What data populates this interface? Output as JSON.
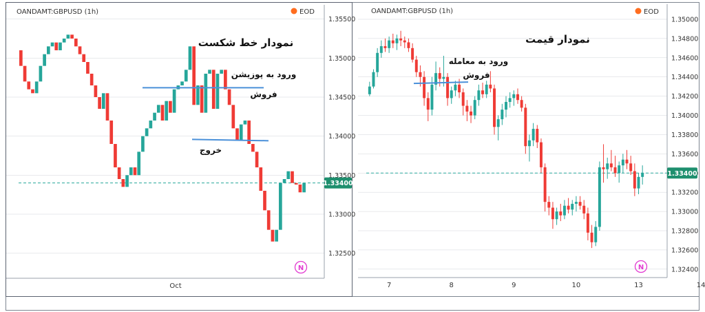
{
  "colors": {
    "up": "#26a69a",
    "down": "#ef3b35",
    "line": "#4a90d9",
    "price_tag": "#1e8f6e",
    "eod_dot": "#ff6d1f",
    "logo": "#e23bd1",
    "axis_text": "#333333",
    "grid": "#d0d4da",
    "dashed": "#26a69a"
  },
  "chart_data": [
    {
      "type": "line-break",
      "symbol": "OANDAMT:GBPUSD (1h)",
      "badge": "EOD",
      "title": "نمودار خط شکست",
      "annotations": [
        "ورود به پوزیشن فروش",
        "خروج"
      ],
      "last_price": "1.33400",
      "ylim": [
        1.3225,
        1.3555
      ],
      "y_ticks": [
        "1.35500",
        "1.35000",
        "1.34500",
        "1.34000",
        "1.33500",
        "1.33000",
        "1.32500"
      ],
      "x_ticks": [
        "Oct"
      ],
      "logo": "N",
      "levels": {
        "entry": 1.3462,
        "exit": 1.3395,
        "current": 1.334
      },
      "bricks": [
        {
          "from": 1.351,
          "to": 1.349
        },
        {
          "from": 1.349,
          "to": 1.347
        },
        {
          "from": 1.347,
          "to": 1.346
        },
        {
          "from": 1.346,
          "to": 1.3455
        },
        {
          "from": 1.3455,
          "to": 1.347
        },
        {
          "from": 1.347,
          "to": 1.349
        },
        {
          "from": 1.349,
          "to": 1.3505
        },
        {
          "from": 1.3505,
          "to": 1.3515
        },
        {
          "from": 1.3515,
          "to": 1.352
        },
        {
          "from": 1.352,
          "to": 1.351
        },
        {
          "from": 1.351,
          "to": 1.352
        },
        {
          "from": 1.352,
          "to": 1.3525
        },
        {
          "from": 1.3525,
          "to": 1.353
        },
        {
          "from": 1.353,
          "to": 1.3525
        },
        {
          "from": 1.3525,
          "to": 1.3515
        },
        {
          "from": 1.3515,
          "to": 1.3505
        },
        {
          "from": 1.3505,
          "to": 1.3495
        },
        {
          "from": 1.3495,
          "to": 1.348
        },
        {
          "from": 1.348,
          "to": 1.3465
        },
        {
          "from": 1.3465,
          "to": 1.345
        },
        {
          "from": 1.345,
          "to": 1.3435
        },
        {
          "from": 1.3435,
          "to": 1.3455
        },
        {
          "from": 1.3455,
          "to": 1.342
        },
        {
          "from": 1.342,
          "to": 1.339
        },
        {
          "from": 1.339,
          "to": 1.336
        },
        {
          "from": 1.336,
          "to": 1.3345
        },
        {
          "from": 1.3345,
          "to": 1.3335
        },
        {
          "from": 1.3335,
          "to": 1.335
        },
        {
          "from": 1.335,
          "to": 1.336
        },
        {
          "from": 1.336,
          "to": 1.335
        },
        {
          "from": 1.335,
          "to": 1.338
        },
        {
          "from": 1.338,
          "to": 1.34
        },
        {
          "from": 1.34,
          "to": 1.341
        },
        {
          "from": 1.341,
          "to": 1.342
        },
        {
          "from": 1.342,
          "to": 1.343
        },
        {
          "from": 1.343,
          "to": 1.344
        },
        {
          "from": 1.344,
          "to": 1.342
        },
        {
          "from": 1.342,
          "to": 1.3445
        },
        {
          "from": 1.3445,
          "to": 1.343
        },
        {
          "from": 1.343,
          "to": 1.346
        },
        {
          "from": 1.346,
          "to": 1.3465
        },
        {
          "from": 1.3465,
          "to": 1.347
        },
        {
          "from": 1.347,
          "to": 1.3485
        },
        {
          "from": 1.3485,
          "to": 1.3515
        },
        {
          "from": 1.3515,
          "to": 1.344
        },
        {
          "from": 1.344,
          "to": 1.3465
        },
        {
          "from": 1.3465,
          "to": 1.343
        },
        {
          "from": 1.343,
          "to": 1.348
        },
        {
          "from": 1.348,
          "to": 1.3485
        },
        {
          "from": 1.3485,
          "to": 1.3435
        },
        {
          "from": 1.3435,
          "to": 1.348
        },
        {
          "from": 1.348,
          "to": 1.3485
        },
        {
          "from": 1.3485,
          "to": 1.346
        },
        {
          "from": 1.346,
          "to": 1.344
        },
        {
          "from": 1.344,
          "to": 1.341
        },
        {
          "from": 1.341,
          "to": 1.3395
        },
        {
          "from": 1.3395,
          "to": 1.3415
        },
        {
          "from": 1.3415,
          "to": 1.342
        },
        {
          "from": 1.342,
          "to": 1.339
        },
        {
          "from": 1.339,
          "to": 1.338
        },
        {
          "from": 1.338,
          "to": 1.336
        },
        {
          "from": 1.336,
          "to": 1.333
        },
        {
          "from": 1.333,
          "to": 1.3305
        },
        {
          "from": 1.3305,
          "to": 1.328
        },
        {
          "from": 1.328,
          "to": 1.3265
        },
        {
          "from": 1.3265,
          "to": 1.328
        },
        {
          "from": 1.328,
          "to": 1.334
        },
        {
          "from": 1.334,
          "to": 1.3345
        },
        {
          "from": 1.3345,
          "to": 1.3355
        },
        {
          "from": 1.3355,
          "to": 1.334
        },
        {
          "from": 1.334,
          "to": 1.3338
        },
        {
          "from": 1.3338,
          "to": 1.3328
        },
        {
          "from": 1.3328,
          "to": 1.334
        }
      ]
    },
    {
      "type": "candlestick",
      "symbol": "OANDAMT:GBPUSD (1h)",
      "badge": "EOD",
      "title": "نمودار قیمت",
      "annotations": [
        "ورود به معامله فروش"
      ],
      "last_price": "1.33400",
      "ylim": [
        1.3237,
        1.3505
      ],
      "y_ticks": [
        "1.35000",
        "1.34800",
        "1.34600",
        "1.34400",
        "1.34200",
        "1.34000",
        "1.33800",
        "1.33600",
        "1.33400",
        "1.33200",
        "1.33000",
        "1.32800",
        "1.32600",
        "1.32400"
      ],
      "x_ticks": [
        "7",
        "8",
        "9",
        "10",
        "13",
        "14"
      ],
      "x_tick_index": [
        5,
        21,
        37,
        53,
        69,
        85
      ],
      "logo": "N",
      "levels": {
        "entry": 1.3434,
        "current": 1.334
      },
      "candles": [
        [
          1.3422,
          1.3435,
          1.342,
          1.343
        ],
        [
          1.343,
          1.3448,
          1.3428,
          1.3445
        ],
        [
          1.3445,
          1.347,
          1.344,
          1.3465
        ],
        [
          1.3465,
          1.3478,
          1.346,
          1.3472
        ],
        [
          1.3472,
          1.348,
          1.3466,
          1.347
        ],
        [
          1.347,
          1.3482,
          1.3465,
          1.3478
        ],
        [
          1.3478,
          1.3485,
          1.347,
          1.3475
        ],
        [
          1.3475,
          1.3484,
          1.3468,
          1.348
        ],
        [
          1.348,
          1.3488,
          1.3472,
          1.3478
        ],
        [
          1.3478,
          1.3482,
          1.347,
          1.3476
        ],
        [
          1.3476,
          1.348,
          1.3466,
          1.347
        ],
        [
          1.347,
          1.3475,
          1.3455,
          1.3458
        ],
        [
          1.3458,
          1.3462,
          1.344,
          1.3445
        ],
        [
          1.3445,
          1.3452,
          1.343,
          1.344
        ],
        [
          1.344,
          1.3446,
          1.341,
          1.3418
        ],
        [
          1.3418,
          1.3424,
          1.3394,
          1.3406
        ],
        [
          1.3406,
          1.344,
          1.34,
          1.3432
        ],
        [
          1.3432,
          1.3456,
          1.3426,
          1.3444
        ],
        [
          1.3444,
          1.345,
          1.343,
          1.3438
        ],
        [
          1.3438,
          1.3462,
          1.343,
          1.344
        ],
        [
          1.344,
          1.3444,
          1.341,
          1.3418
        ],
        [
          1.3418,
          1.343,
          1.3412,
          1.3426
        ],
        [
          1.3426,
          1.3436,
          1.342,
          1.3432
        ],
        [
          1.3432,
          1.3438,
          1.3418,
          1.3424
        ],
        [
          1.3424,
          1.3428,
          1.34,
          1.341
        ],
        [
          1.341,
          1.3416,
          1.3394,
          1.3404
        ],
        [
          1.3404,
          1.341,
          1.3392,
          1.34
        ],
        [
          1.34,
          1.342,
          1.3396,
          1.3416
        ],
        [
          1.3416,
          1.3432,
          1.341,
          1.3426
        ],
        [
          1.3426,
          1.3434,
          1.3418,
          1.3422
        ],
        [
          1.3422,
          1.3436,
          1.3418,
          1.3432
        ],
        [
          1.3432,
          1.3446,
          1.3424,
          1.3428
        ],
        [
          1.3428,
          1.3432,
          1.338,
          1.3388
        ],
        [
          1.3388,
          1.34,
          1.3374,
          1.3396
        ],
        [
          1.3396,
          1.3412,
          1.339,
          1.3406
        ],
        [
          1.3406,
          1.342,
          1.3398,
          1.3414
        ],
        [
          1.3414,
          1.3424,
          1.3408,
          1.3418
        ],
        [
          1.3418,
          1.3426,
          1.341,
          1.3422
        ],
        [
          1.3422,
          1.3428,
          1.3412,
          1.3416
        ],
        [
          1.3416,
          1.342,
          1.3404,
          1.3408
        ],
        [
          1.3408,
          1.3412,
          1.336,
          1.3368
        ],
        [
          1.3368,
          1.338,
          1.3352,
          1.3374
        ],
        [
          1.3374,
          1.3392,
          1.3368,
          1.3386
        ],
        [
          1.3386,
          1.339,
          1.3366,
          1.3372
        ],
        [
          1.3372,
          1.3376,
          1.334,
          1.3346
        ],
        [
          1.3346,
          1.335,
          1.33,
          1.331
        ],
        [
          1.331,
          1.3316,
          1.3296,
          1.3304
        ],
        [
          1.3304,
          1.331,
          1.3282,
          1.3292
        ],
        [
          1.3292,
          1.3304,
          1.3286,
          1.33
        ],
        [
          1.33,
          1.3308,
          1.329,
          1.3296
        ],
        [
          1.3296,
          1.3312,
          1.3292,
          1.3306
        ],
        [
          1.3306,
          1.3314,
          1.3298,
          1.3302
        ],
        [
          1.3302,
          1.3312,
          1.3296,
          1.3308
        ],
        [
          1.3308,
          1.3316,
          1.33,
          1.331
        ],
        [
          1.331,
          1.3316,
          1.3302,
          1.3306
        ],
        [
          1.3306,
          1.3312,
          1.3292,
          1.3298
        ],
        [
          1.3298,
          1.3304,
          1.327,
          1.3278
        ],
        [
          1.3278,
          1.3286,
          1.3262,
          1.3268
        ],
        [
          1.3268,
          1.329,
          1.3264,
          1.3284
        ],
        [
          1.3284,
          1.3352,
          1.328,
          1.3346
        ],
        [
          1.3346,
          1.337,
          1.333,
          1.3344
        ],
        [
          1.3344,
          1.3356,
          1.3334,
          1.335
        ],
        [
          1.335,
          1.3364,
          1.3342,
          1.3346
        ],
        [
          1.3346,
          1.3358,
          1.3336,
          1.334
        ],
        [
          1.334,
          1.3352,
          1.333,
          1.3348
        ],
        [
          1.3348,
          1.336,
          1.334,
          1.3354
        ],
        [
          1.3354,
          1.3364,
          1.3344,
          1.335
        ],
        [
          1.335,
          1.3358,
          1.3338,
          1.3342
        ],
        [
          1.3342,
          1.335,
          1.3316,
          1.3324
        ],
        [
          1.3324,
          1.334,
          1.3318,
          1.3336
        ],
        [
          1.3336,
          1.3348,
          1.3328,
          1.334
        ]
      ]
    }
  ]
}
